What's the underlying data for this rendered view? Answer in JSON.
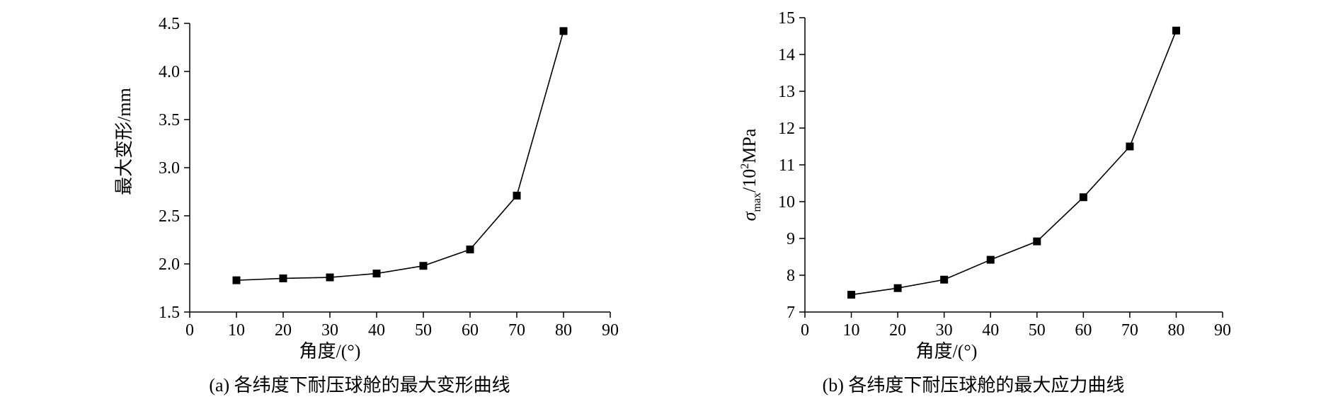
{
  "chart_data": [
    {
      "type": "line",
      "caption": "(a) 各纬度下耐压球舱的最大变形曲线",
      "xlabel": "角度/(°)",
      "ylabel": "最大变形/mm",
      "xlim": [
        0,
        90
      ],
      "ylim": [
        1.5,
        4.5
      ],
      "xticks": [
        "0",
        "10",
        "20",
        "30",
        "40",
        "50",
        "60",
        "70",
        "80",
        "90"
      ],
      "yticks": [
        "1.5",
        "2.0",
        "2.5",
        "3.0",
        "3.5",
        "4.0",
        "4.5"
      ],
      "marker": "square",
      "series": [
        {
          "x": [
            10,
            20,
            30,
            40,
            50,
            60,
            70,
            80
          ],
          "y": [
            1.83,
            1.85,
            1.86,
            1.9,
            1.98,
            2.15,
            2.71,
            4.42
          ]
        }
      ]
    },
    {
      "type": "line",
      "caption": "(b) 各纬度下耐压球舱的最大应力曲线",
      "xlabel": "角度/(°)",
      "ylabel": "σmax/10²MPa",
      "ylabel_parts": {
        "symbol": "σ",
        "subscript": "max",
        "rest": "/10",
        "superscript": "2",
        "unit": "MPa"
      },
      "xlim": [
        0,
        90
      ],
      "ylim": [
        7,
        15
      ],
      "xticks": [
        "0",
        "10",
        "20",
        "30",
        "40",
        "50",
        "60",
        "70",
        "80",
        "90"
      ],
      "yticks": [
        "7",
        "8",
        "9",
        "10",
        "11",
        "12",
        "13",
        "14",
        "15"
      ],
      "marker": "square",
      "series": [
        {
          "x": [
            10,
            20,
            30,
            40,
            50,
            60,
            70,
            80
          ],
          "y": [
            7.47,
            7.65,
            7.88,
            8.42,
            8.92,
            10.12,
            11.5,
            14.65
          ]
        }
      ]
    }
  ]
}
